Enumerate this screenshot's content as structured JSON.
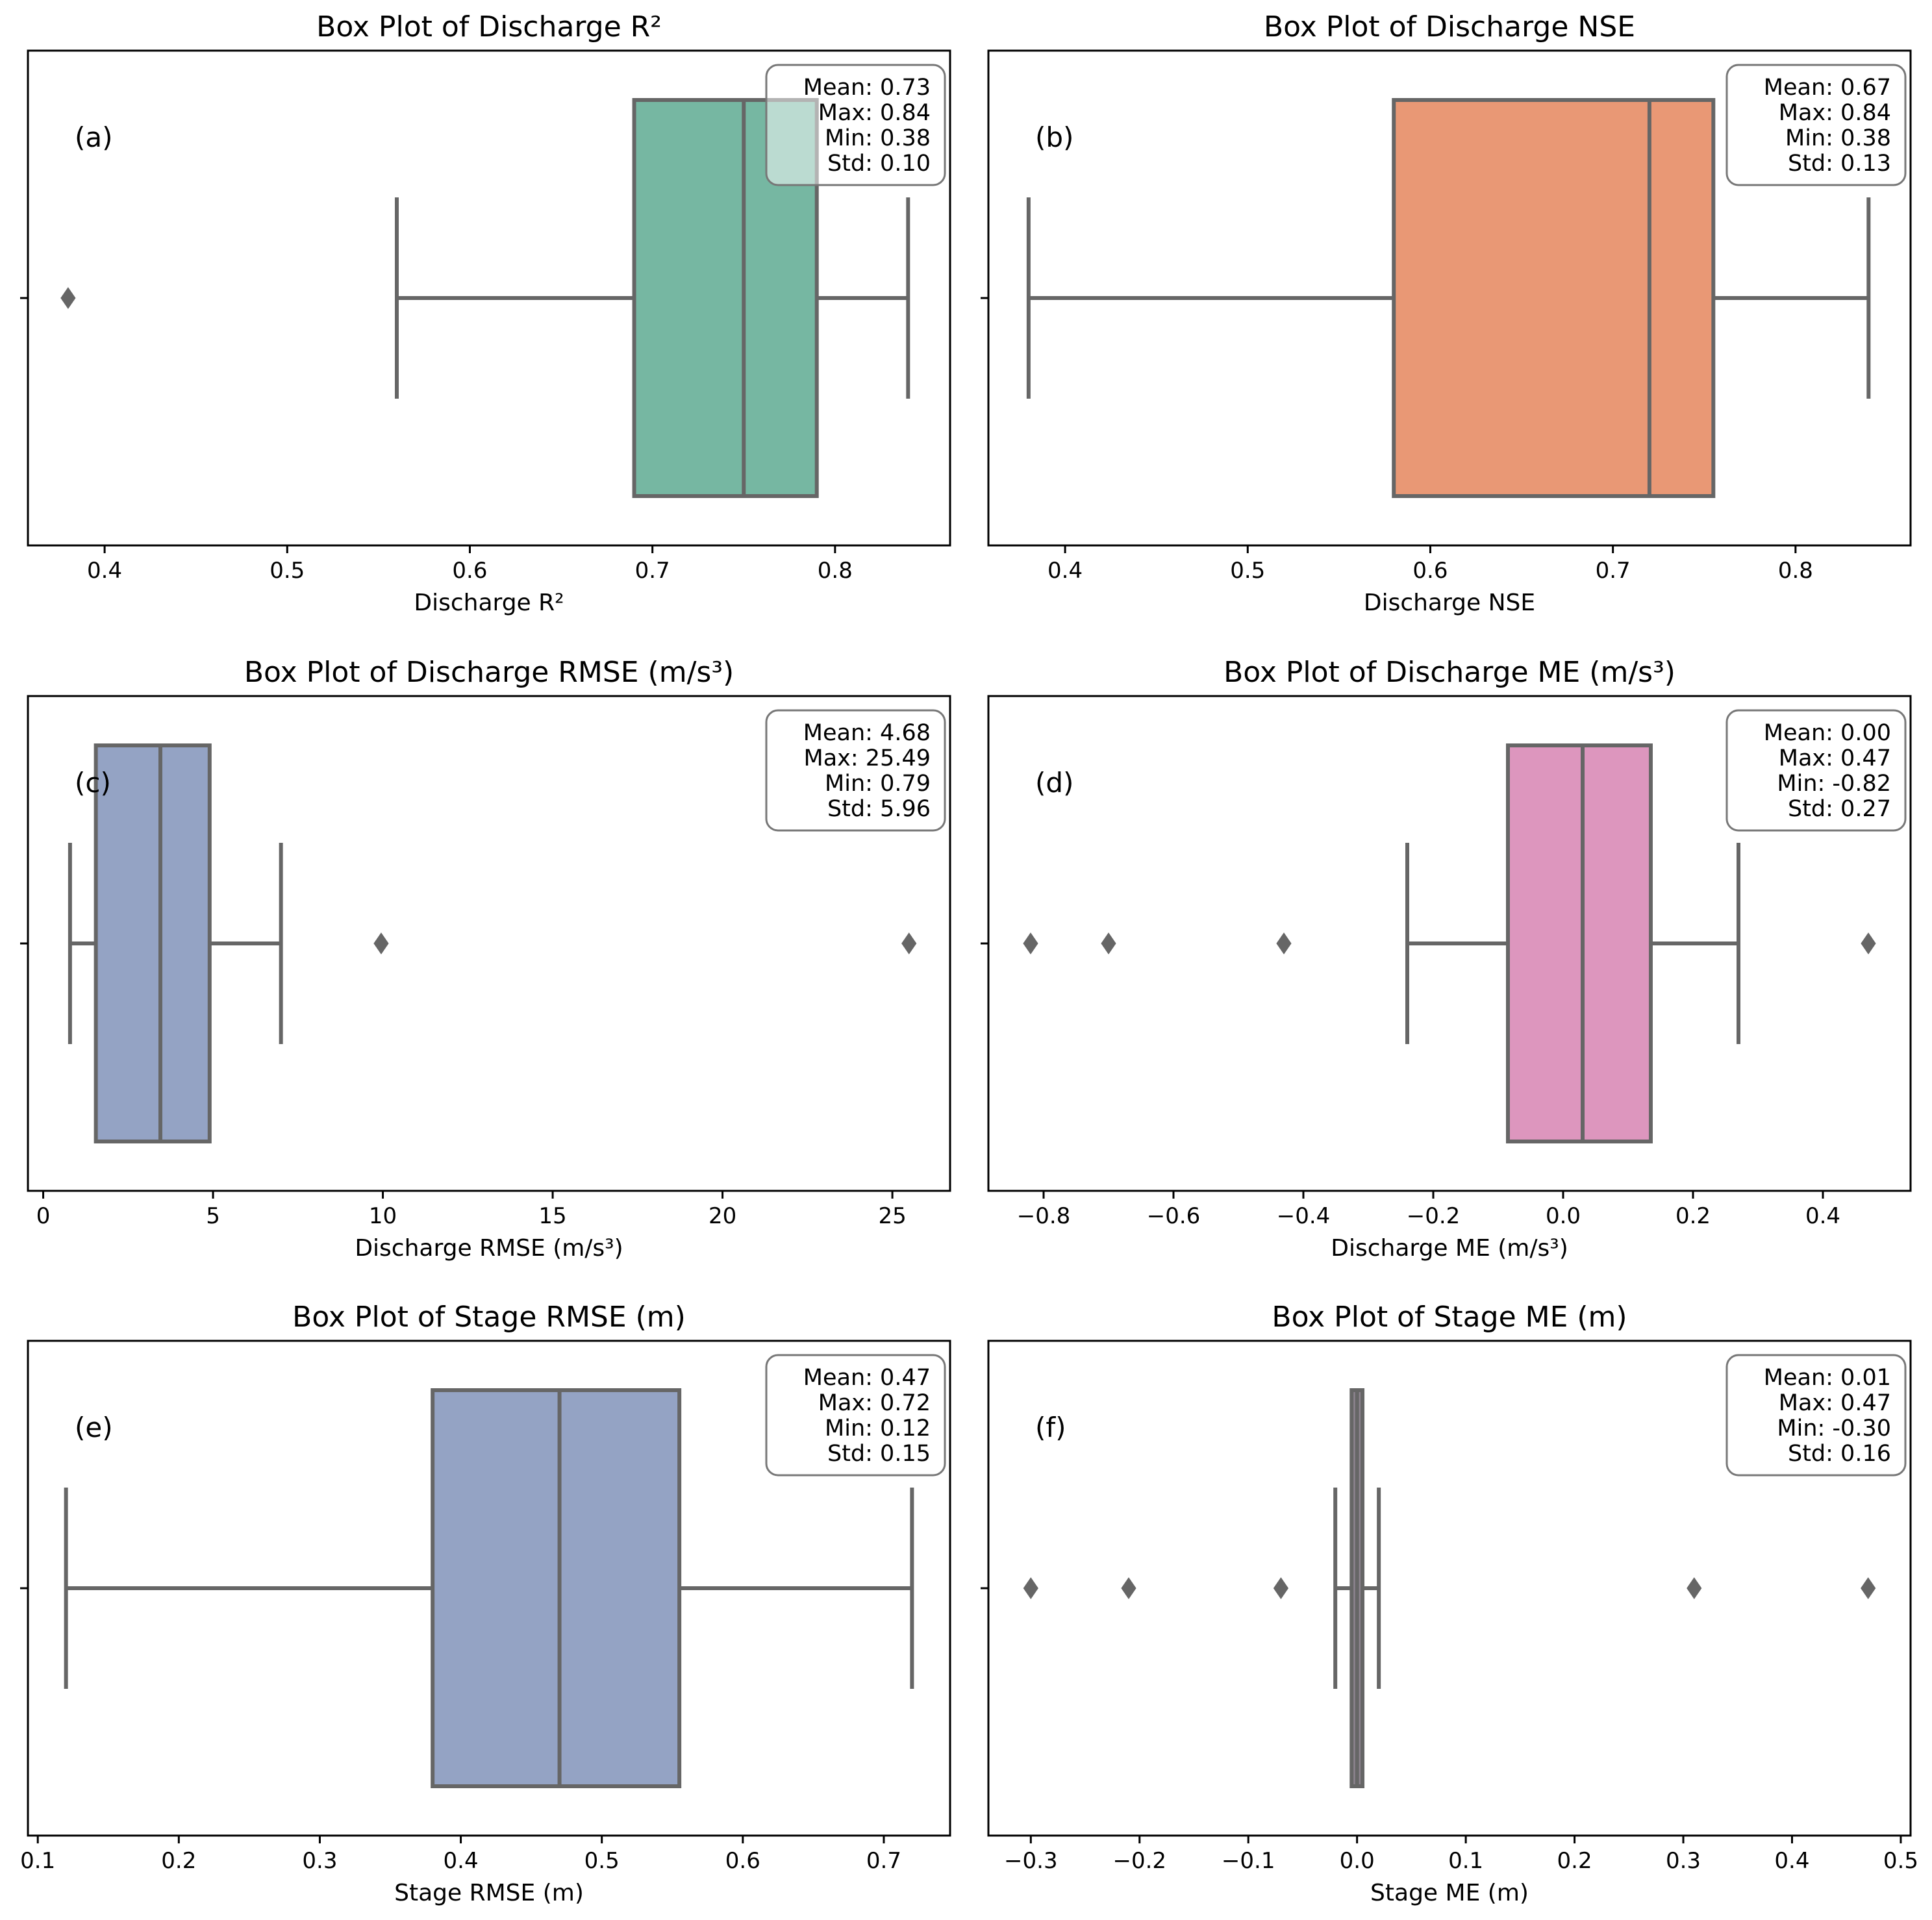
{
  "chart_data": [
    {
      "type": "box",
      "panel_label": "(a)",
      "title": "Box Plot of Discharge R²",
      "xlabel": "Discharge R²",
      "xlim": [
        0.358,
        0.863
      ],
      "xticks": [
        0.4,
        0.5,
        0.6,
        0.7,
        0.8
      ],
      "xtick_labels": [
        "0.4",
        "0.5",
        "0.6",
        "0.7",
        "0.8"
      ],
      "color": "#76b7a2",
      "box": {
        "whisker_low": 0.56,
        "q1": 0.69,
        "median": 0.75,
        "q3": 0.79,
        "whisker_high": 0.84
      },
      "outliers": [
        0.38
      ],
      "stats": [
        "Mean: 0.73",
        "Max: 0.84",
        "Min: 0.38",
        "Std: 0.10"
      ]
    },
    {
      "type": "box",
      "panel_label": "(b)",
      "title": "Box Plot of Discharge NSE",
      "xlabel": "Discharge NSE",
      "xlim": [
        0.358,
        0.863
      ],
      "xticks": [
        0.4,
        0.5,
        0.6,
        0.7,
        0.8
      ],
      "xtick_labels": [
        "0.4",
        "0.5",
        "0.6",
        "0.7",
        "0.8"
      ],
      "color": "#e99875",
      "box": {
        "whisker_low": 0.38,
        "q1": 0.58,
        "median": 0.72,
        "q3": 0.755,
        "whisker_high": 0.84
      },
      "outliers": [],
      "stats": [
        "Mean: 0.67",
        "Max: 0.84",
        "Min: 0.38",
        "Std: 0.13"
      ]
    },
    {
      "type": "box",
      "panel_label": "(c)",
      "title": "Box Plot of Discharge RMSE (m/s³)",
      "xlabel": "Discharge RMSE (m/s³)",
      "xlim": [
        -0.45,
        26.7
      ],
      "xticks": [
        0,
        5,
        10,
        15,
        20,
        25
      ],
      "xtick_labels": [
        "0",
        "5",
        "10",
        "15",
        "20",
        "25"
      ],
      "color": "#94a3c4",
      "box": {
        "whisker_low": 0.79,
        "q1": 1.55,
        "median": 3.45,
        "q3": 4.9,
        "whisker_high": 7.0
      },
      "outliers": [
        9.95,
        25.49
      ],
      "stats": [
        "Mean: 4.68",
        "Max: 25.49",
        "Min: 0.79",
        "Std: 5.96"
      ]
    },
    {
      "type": "box",
      "panel_label": "(d)",
      "title": "Box Plot of Discharge ME (m/s³)",
      "xlabel": "Discharge ME (m/s³)",
      "xlim": [
        -0.885,
        0.535
      ],
      "xticks": [
        -0.8,
        -0.6,
        -0.4,
        -0.2,
        0.0,
        0.2,
        0.4
      ],
      "xtick_labels": [
        "−0.8",
        "−0.6",
        "−0.4",
        "−0.2",
        "0.0",
        "0.2",
        "0.4"
      ],
      "color": "#dd96be",
      "box": {
        "whisker_low": -0.24,
        "q1": -0.085,
        "median": 0.03,
        "q3": 0.135,
        "whisker_high": 0.27
      },
      "outliers": [
        -0.82,
        -0.7,
        -0.43,
        0.47
      ],
      "stats": [
        "Mean: 0.00",
        "Max: 0.47",
        "Min: -0.82",
        "Std: 0.27"
      ]
    },
    {
      "type": "box",
      "panel_label": "(e)",
      "title": "Box Plot of Stage RMSE (m)",
      "xlabel": "Stage RMSE (m)",
      "xlim": [
        0.093,
        0.747
      ],
      "xticks": [
        0.1,
        0.2,
        0.3,
        0.4,
        0.5,
        0.6,
        0.7
      ],
      "xtick_labels": [
        "0.1",
        "0.2",
        "0.3",
        "0.4",
        "0.5",
        "0.6",
        "0.7"
      ],
      "color": "#94a3c4",
      "box": {
        "whisker_low": 0.12,
        "q1": 0.38,
        "median": 0.47,
        "q3": 0.555,
        "whisker_high": 0.72
      },
      "outliers": [],
      "stats": [
        "Mean: 0.47",
        "Max: 0.72",
        "Min: 0.12",
        "Std: 0.15"
      ]
    },
    {
      "type": "box",
      "panel_label": "(f)",
      "title": "Box Plot of Stage ME (m)",
      "xlabel": "Stage ME (m)",
      "xlim": [
        -0.339,
        0.509
      ],
      "xticks": [
        -0.3,
        -0.2,
        -0.1,
        0.0,
        0.1,
        0.2,
        0.3,
        0.4,
        0.5
      ],
      "xtick_labels": [
        "−0.3",
        "−0.2",
        "−0.1",
        "0.0",
        "0.1",
        "0.2",
        "0.3",
        "0.4",
        "0.5"
      ],
      "color": "#8e8590",
      "box": {
        "whisker_low": -0.02,
        "q1": -0.005,
        "median": 0.0,
        "q3": 0.005,
        "whisker_high": 0.02
      },
      "outliers": [
        -0.3,
        -0.21,
        -0.07,
        0.31,
        0.47
      ],
      "stats": [
        "Mean: 0.01",
        "Max: 0.47",
        "Min: -0.30",
        "Std: 0.16"
      ]
    }
  ]
}
